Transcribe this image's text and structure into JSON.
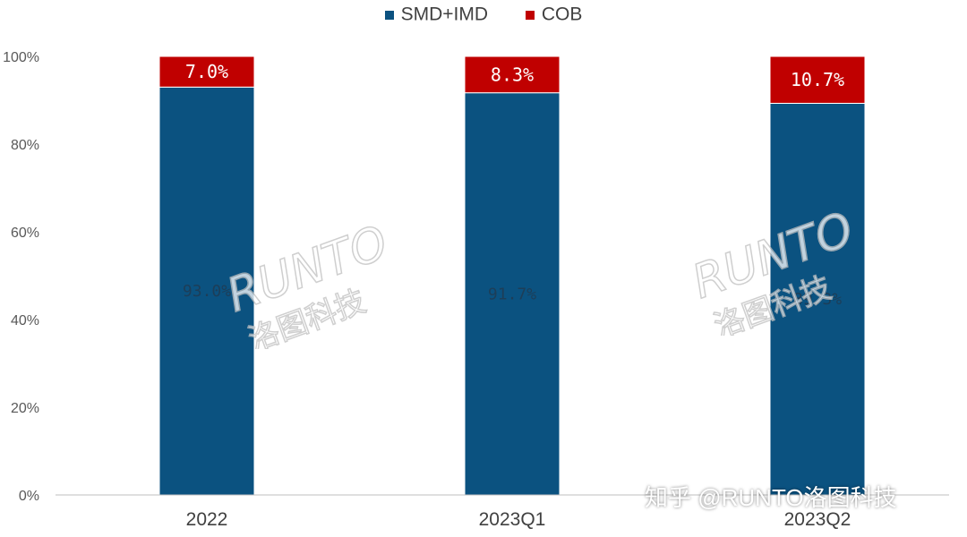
{
  "legend": {
    "items": [
      {
        "label": "SMD+IMD",
        "color": "#0b5280"
      },
      {
        "label": "COB",
        "color": "#c00000"
      }
    ]
  },
  "chart_data": {
    "type": "bar",
    "stacked": true,
    "categories": [
      "2022",
      "2023Q1",
      "2023Q2"
    ],
    "series": [
      {
        "name": "SMD+IMD",
        "values": [
          93.0,
          91.7,
          89.3
        ],
        "labels": [
          "93.0%",
          "91.7%",
          "89.3%"
        ],
        "color": "#0b5280"
      },
      {
        "name": "COB",
        "values": [
          7.0,
          8.3,
          10.7
        ],
        "labels": [
          "7.0%",
          "8.3%",
          "10.7%"
        ],
        "color": "#c00000"
      }
    ],
    "yticks": [
      "0%",
      "20%",
      "40%",
      "60%",
      "80%",
      "100%"
    ],
    "ylim": [
      0,
      100
    ],
    "legend_position": "top",
    "grid": false
  },
  "watermark": {
    "text_en": "RUNTO",
    "text_cn": "洛图科技"
  },
  "credit": "知乎 @RUNTO洛图科技"
}
